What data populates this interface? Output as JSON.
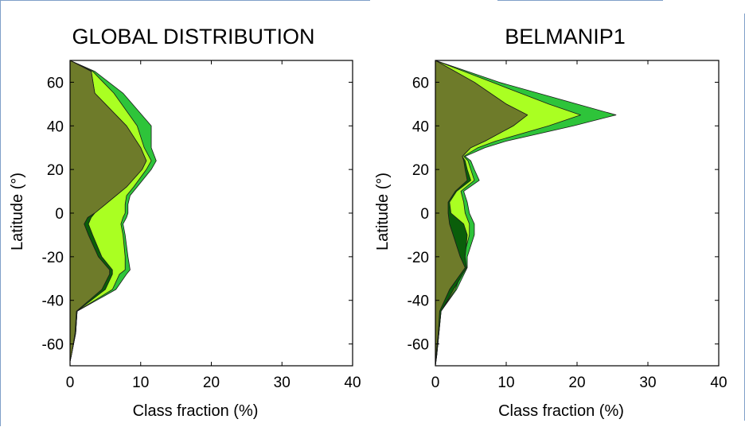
{
  "chart_data": [
    {
      "type": "area",
      "title": "GLOBAL DISTRIBUTION",
      "xlabel": "Class fraction (%)",
      "ylabel": "Latitude (°)",
      "xlim": [
        0,
        40
      ],
      "ylim": [
        -70,
        70
      ],
      "xticks": [
        "0",
        "10",
        "20",
        "30",
        "40"
      ],
      "yticks": [
        "60",
        "40",
        "20",
        "0",
        "-20",
        "-40",
        "-60"
      ],
      "latitude": [
        70,
        65,
        55,
        40,
        30,
        24,
        20,
        12,
        8,
        4,
        0,
        -2,
        -5,
        -10,
        -20,
        -26,
        -28,
        -35,
        -45,
        -55,
        -65,
        -68
      ],
      "series": [
        {
          "color": "#2ec43a",
          "values": [
            0,
            3.5,
            7.5,
            11.5,
            11.5,
            12.2,
            11.5,
            9.5,
            8.5,
            8.2,
            8.2,
            8.0,
            7.5,
            7.8,
            8.2,
            8.5,
            8.0,
            6.5,
            1.0,
            0.8,
            0.2,
            0
          ]
        },
        {
          "color": "#aaff22",
          "values": [
            0,
            3.2,
            6.2,
            9.5,
            10.5,
            11.5,
            10.8,
            9.0,
            8.0,
            7.8,
            7.8,
            7.5,
            7.2,
            7.5,
            7.8,
            7.8,
            7.0,
            6.0,
            1.0,
            0.8,
            0.2,
            0
          ]
        },
        {
          "color": "#0a5e0a",
          "values": [
            0,
            3.0,
            3.5,
            8.0,
            10.0,
            10.8,
            10.2,
            8.0,
            6.5,
            5.0,
            3.5,
            3.0,
            2.6,
            3.2,
            4.5,
            6.0,
            6.0,
            5.0,
            1.0,
            0.8,
            0.2,
            0
          ]
        },
        {
          "color": "#6e7b2a",
          "values": [
            0,
            3.0,
            3.5,
            8.0,
            10.0,
            10.8,
            10.2,
            8.0,
            6.5,
            5.0,
            3.5,
            2.5,
            2.0,
            2.6,
            4.0,
            5.6,
            5.6,
            4.5,
            0.9,
            0.7,
            0.2,
            0
          ]
        }
      ]
    },
    {
      "type": "area",
      "title": "BELMANIP1",
      "xlabel": "Class fraction (%)",
      "ylabel": "Latitude (°)",
      "xlim": [
        0,
        40
      ],
      "ylim": [
        -70,
        70
      ],
      "xticks": [
        "0",
        "10",
        "20",
        "30",
        "40"
      ],
      "yticks": [
        "60",
        "40",
        "20",
        "0",
        "-20",
        "-40",
        "-60"
      ],
      "latitude": [
        70,
        60,
        50,
        45,
        40,
        33,
        30,
        26,
        24,
        20,
        15,
        10,
        5,
        0,
        -5,
        -10,
        -20,
        -25,
        -35,
        -45,
        -55,
        -65,
        -70
      ],
      "series": [
        {
          "color": "#2ec43a",
          "values": [
            0,
            9.0,
            20.0,
            25.5,
            19.5,
            10.0,
            7.0,
            4.2,
            5.0,
            5.5,
            6.2,
            4.0,
            4.5,
            4.8,
            5.5,
            5.5,
            4.5,
            4.5,
            3.0,
            0.8,
            0.5,
            0.2,
            0
          ]
        },
        {
          "color": "#aaff22",
          "values": [
            0,
            8.0,
            16.0,
            20.5,
            16.0,
            8.5,
            6.0,
            4.0,
            4.6,
            5.0,
            5.5,
            3.6,
            4.0,
            4.2,
            4.8,
            4.8,
            4.0,
            4.0,
            2.8,
            0.8,
            0.5,
            0.2,
            0
          ]
        },
        {
          "color": "#0a5e0a",
          "values": [
            0,
            5.5,
            10.0,
            13.0,
            11.0,
            7.0,
            5.0,
            3.8,
            4.2,
            4.5,
            5.0,
            3.0,
            2.0,
            2.2,
            4.0,
            4.5,
            4.2,
            4.4,
            2.6,
            0.8,
            0.5,
            0.2,
            0
          ]
        },
        {
          "color": "#6e7b2a",
          "values": [
            0,
            5.5,
            10.0,
            13.0,
            11.0,
            7.0,
            5.0,
            3.8,
            4.0,
            4.2,
            4.5,
            2.8,
            1.8,
            1.8,
            2.0,
            2.5,
            3.5,
            4.2,
            2.0,
            0.6,
            0.4,
            0.1,
            0
          ]
        }
      ]
    }
  ]
}
